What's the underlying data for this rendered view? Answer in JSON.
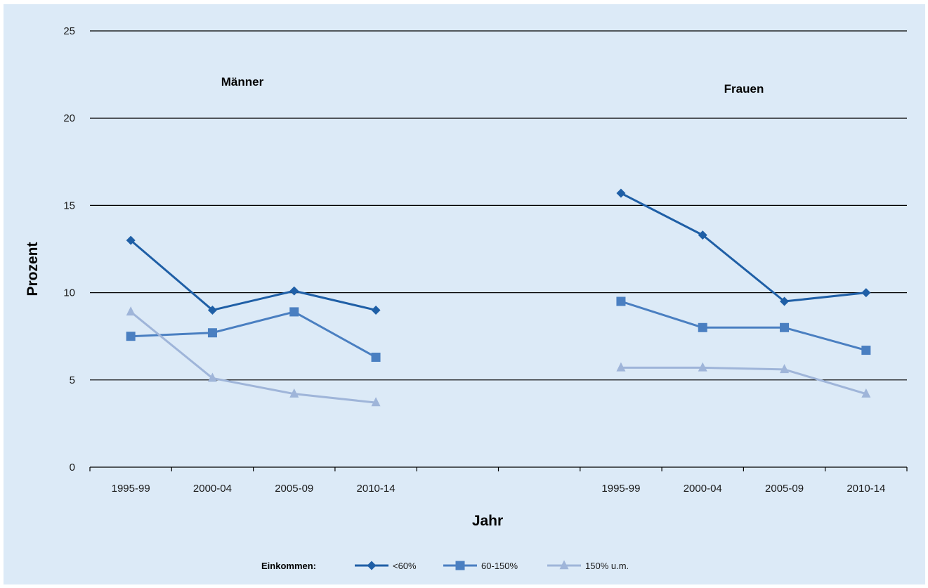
{
  "chart_data": {
    "type": "line",
    "ylabel": "Prozent",
    "xlabel": "Jahr",
    "ylim": [
      0,
      25
    ],
    "yticks": [
      0,
      5,
      10,
      15,
      20,
      25
    ],
    "grid": "horizontal",
    "legend": {
      "title": "Einkommen:",
      "placement": "bottom-center"
    },
    "colors": {
      "<60%": "#1f5fa6",
      "60-150%": "#4a7fc1",
      "150% u.m.": "#9fb5d9",
      "background": "#dceaf7",
      "gridline": "#000000"
    },
    "series_names": [
      "<60%",
      "60-150%",
      "150% u.m."
    ],
    "panels": [
      {
        "title": "Männer",
        "categories": [
          "1995-99",
          "2000-04",
          "2005-09",
          "2010-14"
        ],
        "series": [
          {
            "name": "<60%",
            "marker": "diamond",
            "values": [
              13.0,
              9.0,
              10.1,
              9.0
            ]
          },
          {
            "name": "60-150%",
            "marker": "square",
            "values": [
              7.5,
              7.7,
              8.9,
              6.3
            ]
          },
          {
            "name": "150% u.m.",
            "marker": "triangle",
            "values": [
              8.9,
              5.1,
              4.2,
              3.7
            ]
          }
        ]
      },
      {
        "title": "Frauen",
        "categories": [
          "1995-99",
          "2000-04",
          "2005-09",
          "2010-14"
        ],
        "series": [
          {
            "name": "<60%",
            "marker": "diamond",
            "values": [
              15.7,
              13.3,
              9.5,
              10.0
            ]
          },
          {
            "name": "60-150%",
            "marker": "square",
            "values": [
              9.5,
              8.0,
              8.0,
              6.7
            ]
          },
          {
            "name": "150% u.m.",
            "marker": "triangle",
            "values": [
              5.7,
              5.7,
              5.6,
              4.2
            ]
          }
        ]
      }
    ]
  }
}
